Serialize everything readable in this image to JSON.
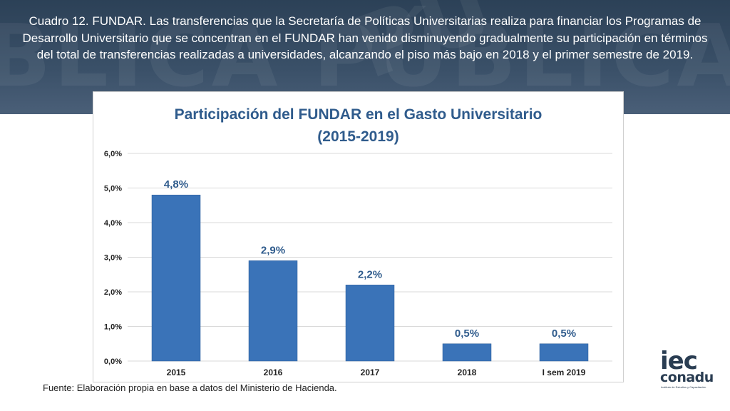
{
  "caption": "Cuadro 12.  FUNDAR. Las transferencias que la Secretaría de Políticas Universitarias realiza para financiar los Programas de Desarrollo Universitario que se concentran en el FUNDAR han venido disminuyendo gradualmente su participación en términos del total de transferencias realizadas a universidades, alcanzando el piso más bajo en 2018 y el primer semestre de 2019.",
  "source": "Fuente: Elaboración propia en base a datos del Ministerio de Hacienda.",
  "logo": {
    "name_top": "iec",
    "name_bottom": "conadu",
    "subtitle": "Instituto de Estudios y Capacitación"
  },
  "colors": {
    "bar": "#3a73b8",
    "title": "#2f5b8c",
    "label": "#2f5b8c"
  },
  "chart_data": {
    "type": "bar",
    "title_line1": "Participación del FUNDAR en el Gasto Universitario",
    "title_line2": "(2015-2019)",
    "categories": [
      "2015",
      "2016",
      "2017",
      "2018",
      "I sem 2019"
    ],
    "values": [
      4.8,
      2.9,
      2.2,
      0.5,
      0.5
    ],
    "value_labels": [
      "4,8%",
      "2,9%",
      "2,2%",
      "0,5%",
      "0,5%"
    ],
    "yticks": [
      "0,0%",
      "1,0%",
      "2,0%",
      "3,0%",
      "4,0%",
      "5,0%",
      "6,0%"
    ],
    "ylim": [
      0,
      6
    ],
    "xlabel": "",
    "ylabel": "",
    "grid": true
  }
}
